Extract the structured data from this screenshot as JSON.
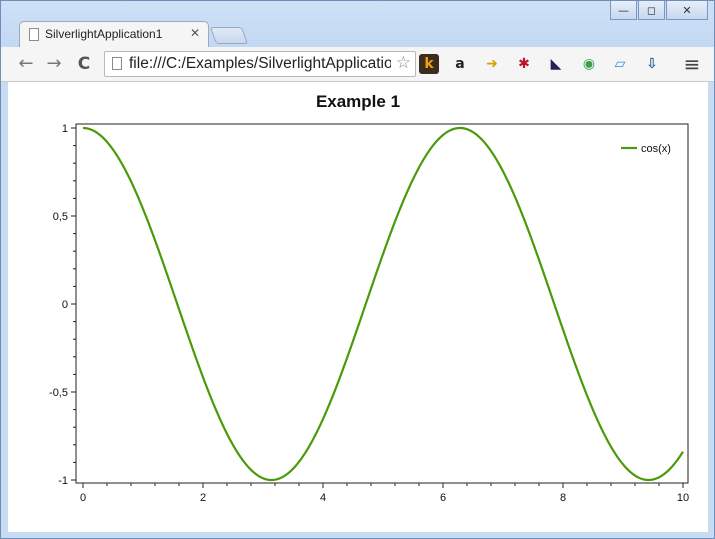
{
  "window": {
    "controls": {
      "minimize": "—",
      "restore": "◻",
      "close": "✕"
    }
  },
  "tabs": [
    {
      "title": "SilverlightApplication1",
      "close": "✕"
    }
  ],
  "toolbar": {
    "back": "←",
    "forward": "→",
    "reload": "C",
    "url": "file:///C:/Examples/SilverlightApplicatio",
    "star": "☆",
    "menu": "≡"
  },
  "extensions": [
    {
      "icon": "k-extension-icon",
      "glyph": "k",
      "color": "#f0a010",
      "bg": "#3a2d1c"
    },
    {
      "icon": "amazon-icon",
      "glyph": "a",
      "color": "#222222",
      "bg": "#f5f5f5"
    },
    {
      "icon": "send-to-phone-icon",
      "glyph": "➜",
      "color": "#d8a000",
      "bg": "#f5f5f5"
    },
    {
      "icon": "gear-red-icon",
      "glyph": "✱",
      "color": "#c0102a",
      "bg": "#f5f5f5"
    },
    {
      "icon": "speed-dial-icon",
      "glyph": "◣",
      "color": "#23205a",
      "bg": "#f5f5f5"
    },
    {
      "icon": "android-icon",
      "glyph": "◉",
      "color": "#3aa14a",
      "bg": "#f5f5f5"
    },
    {
      "icon": "window-resizer-icon",
      "glyph": "▱",
      "color": "#2a8be0",
      "bg": "#f5f5f5"
    },
    {
      "icon": "download-icon",
      "glyph": "⇩",
      "color": "#2a5f9e",
      "bg": "#f5f5f5"
    }
  ],
  "chart_data": {
    "type": "line",
    "title": "Example 1",
    "xlabel": "",
    "ylabel": "",
    "xlim": [
      0,
      10
    ],
    "ylim": [
      -1,
      1
    ],
    "x_ticks": [
      "0",
      "2",
      "4",
      "6",
      "8",
      "10"
    ],
    "y_ticks": [
      "1",
      "0,5",
      "0",
      "-0,5",
      "-1"
    ],
    "y_tick_values": [
      1,
      0.5,
      0,
      -0.5,
      -1
    ],
    "x_tick_values": [
      0,
      2,
      4,
      6,
      8,
      10
    ],
    "legend_position": "top-right",
    "series": [
      {
        "name": "cos(x)",
        "color": "#4a9a0a",
        "x": [
          0,
          0.25,
          0.5,
          0.75,
          1,
          1.25,
          1.5,
          1.75,
          2,
          2.25,
          2.5,
          2.75,
          3,
          3.25,
          3.5,
          3.75,
          4,
          4.25,
          4.5,
          4.75,
          5,
          5.25,
          5.5,
          5.75,
          6,
          6.25,
          6.5,
          6.75,
          7,
          7.25,
          7.5,
          7.75,
          8,
          8.25,
          8.5,
          8.75,
          9,
          9.25,
          9.5,
          9.75,
          10
        ],
        "y": [
          1,
          0.969,
          0.878,
          0.732,
          0.54,
          0.315,
          0.071,
          -0.178,
          -0.416,
          -0.628,
          -0.801,
          -0.924,
          -0.99,
          -0.994,
          -0.936,
          -0.82,
          -0.654,
          -0.446,
          -0.211,
          0.037,
          0.284,
          0.512,
          0.709,
          0.861,
          0.96,
          1.0,
          0.977,
          0.893,
          0.754,
          0.568,
          0.347,
          0.106,
          -0.146,
          -0.386,
          -0.602,
          -0.779,
          -0.911,
          -0.985,
          -0.997,
          -0.947,
          -0.839
        ]
      }
    ]
  }
}
